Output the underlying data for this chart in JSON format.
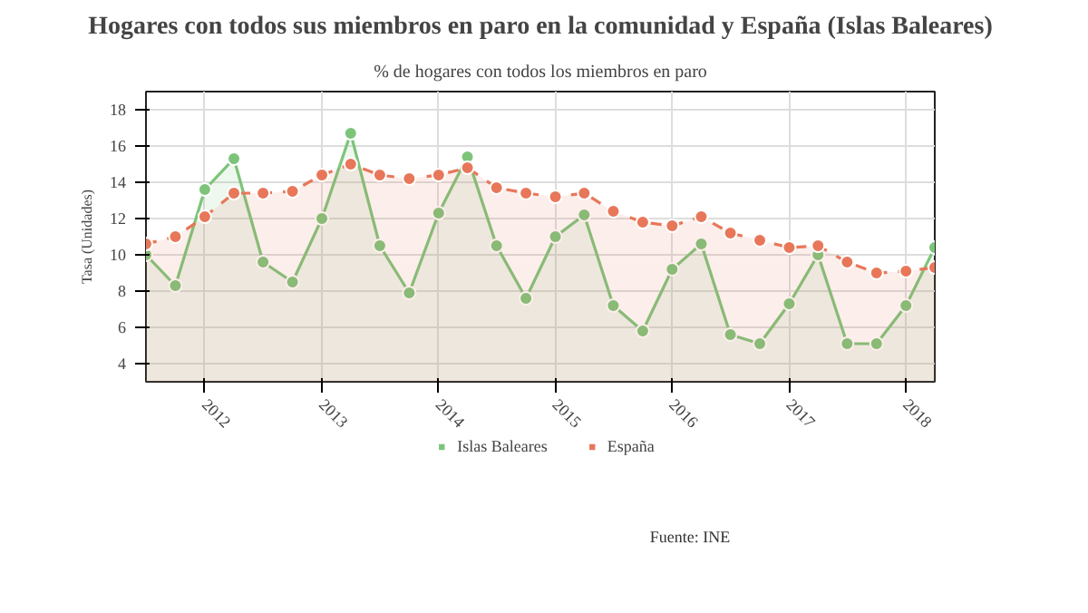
{
  "chart_data": {
    "type": "area",
    "title": "Hogares con todos sus miembros en paro en la comunidad y España (Islas Baleares)",
    "subtitle": "% de hogares con todos los miembros en paro",
    "ylabel": "Tasa (Unidades)",
    "x": [
      "2011-07",
      "2011-10",
      "2012-01",
      "2012-04",
      "2012-07",
      "2012-10",
      "2013-01",
      "2013-04",
      "2013-07",
      "2013-10",
      "2014-01",
      "2014-04",
      "2014-07",
      "2014-10",
      "2015-01",
      "2015-04",
      "2015-07",
      "2015-10",
      "2016-01",
      "2016-04",
      "2016-07",
      "2016-10",
      "2017-01",
      "2017-04",
      "2017-07",
      "2017-10",
      "2018-01",
      "2018-04"
    ],
    "series": [
      {
        "name": "Islas Baleares",
        "color": "#7dc47a",
        "values": [
          10.0,
          8.3,
          13.6,
          15.3,
          9.6,
          8.5,
          12.0,
          16.7,
          10.5,
          7.9,
          12.3,
          15.4,
          10.5,
          7.6,
          11.0,
          12.2,
          7.2,
          5.8,
          9.2,
          10.6,
          5.6,
          5.1,
          7.3,
          10.0,
          5.1,
          5.1,
          7.2,
          10.4
        ]
      },
      {
        "name": "España",
        "color": "#e8775a",
        "values": [
          10.6,
          11.0,
          12.1,
          13.4,
          13.4,
          13.5,
          14.4,
          15.0,
          14.4,
          14.2,
          14.4,
          14.8,
          13.7,
          13.4,
          13.2,
          13.4,
          12.4,
          11.8,
          11.6,
          12.1,
          11.2,
          10.8,
          10.4,
          10.5,
          9.6,
          9.0,
          9.1,
          9.3
        ]
      }
    ],
    "xlim": [
      "2011-07",
      "2018-04"
    ],
    "xticks": [
      "2012",
      "2013",
      "2014",
      "2015",
      "2016",
      "2017",
      "2018"
    ],
    "ylim": [
      3,
      19
    ],
    "yticks": [
      4,
      6,
      8,
      10,
      12,
      14,
      16,
      18
    ],
    "grid": true,
    "legend": "bottom",
    "marker": "circle",
    "line_style": "dashed",
    "annotations": [
      "Fuente: INE"
    ]
  }
}
